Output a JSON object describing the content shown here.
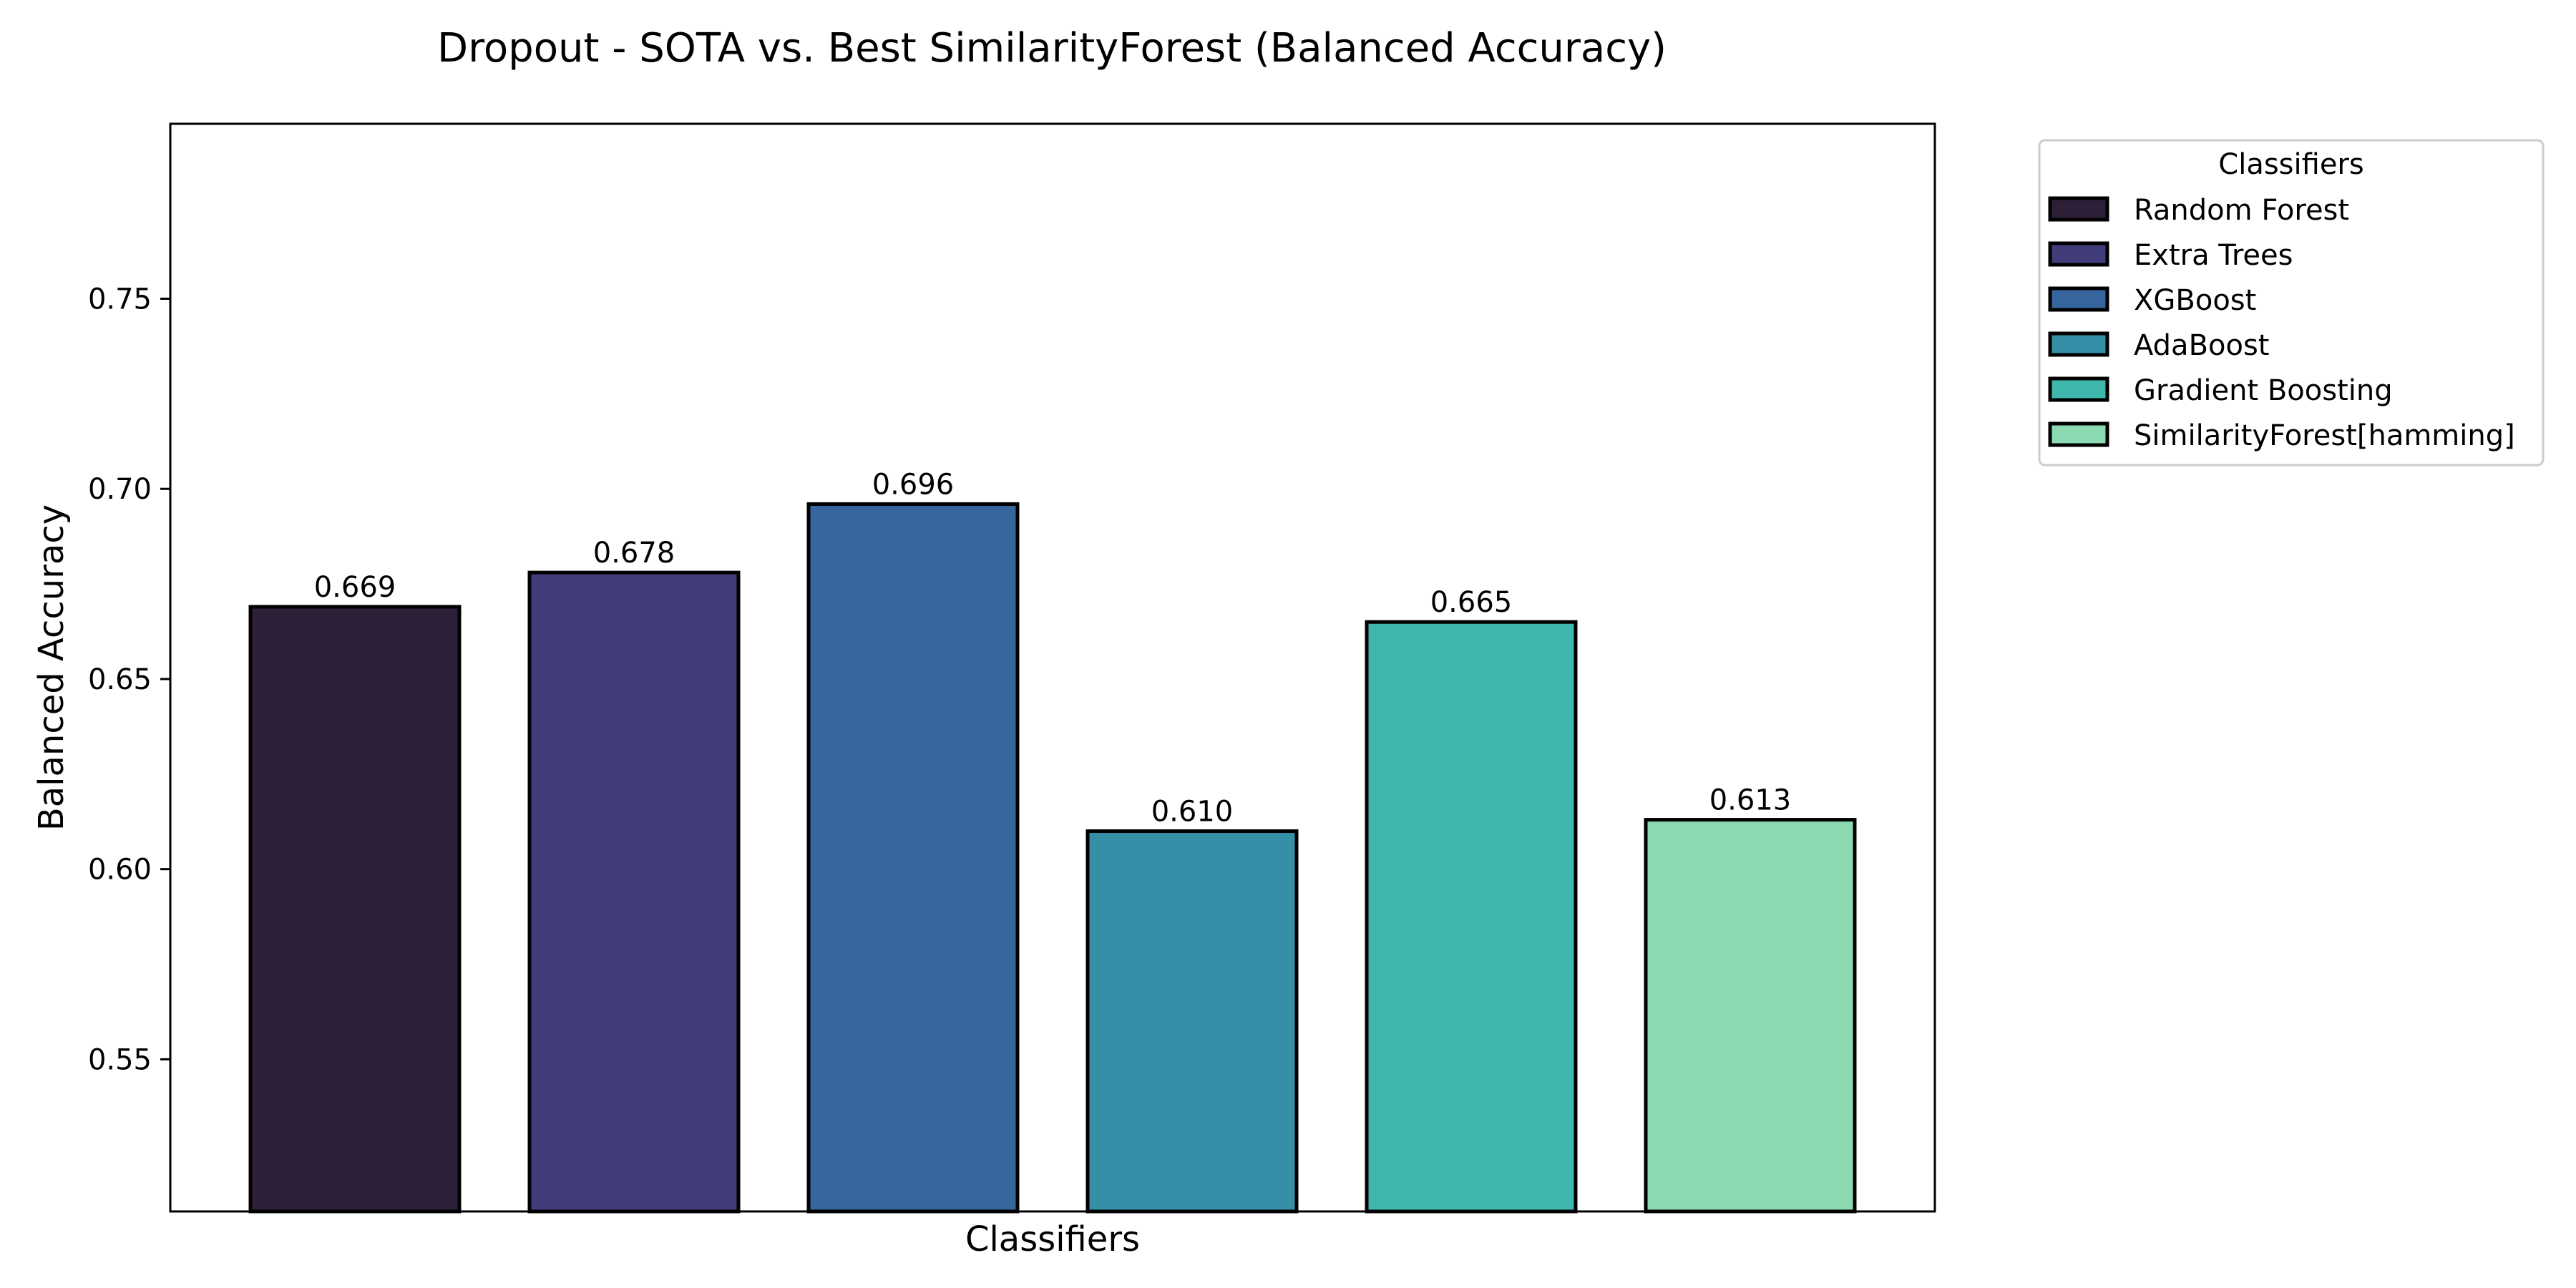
{
  "chart_data": {
    "type": "bar",
    "title": "Dropout - SOTA vs. Best SimilarityForest (Balanced Accuracy)",
    "xlabel": "Classifiers",
    "ylabel": "Balanced Accuracy",
    "ylim": [
      0.51,
      0.796
    ],
    "yticks": [
      "0.55",
      "0.60",
      "0.65",
      "0.70",
      "0.75"
    ],
    "grid": false,
    "legend": {
      "title": "Classifiers",
      "placement": "outside-top-right"
    },
    "series": [
      {
        "name": "Random Forest",
        "value": 0.669,
        "label": "0.669",
        "color": "#2e1f38"
      },
      {
        "name": "Extra Trees",
        "value": 0.678,
        "label": "0.678",
        "color": "#413d7a"
      },
      {
        "name": "XGBoost",
        "value": 0.696,
        "label": "0.696",
        "color": "#37659e"
      },
      {
        "name": "AdaBoost",
        "value": 0.61,
        "label": "0.610",
        "color": "#348fa7"
      },
      {
        "name": "Gradient Boosting",
        "value": 0.665,
        "label": "0.665",
        "color": "#40b7ad"
      },
      {
        "name": "SimilarityForest[hamming]",
        "value": 0.613,
        "label": "0.613",
        "color": "#8bdab2"
      }
    ]
  }
}
